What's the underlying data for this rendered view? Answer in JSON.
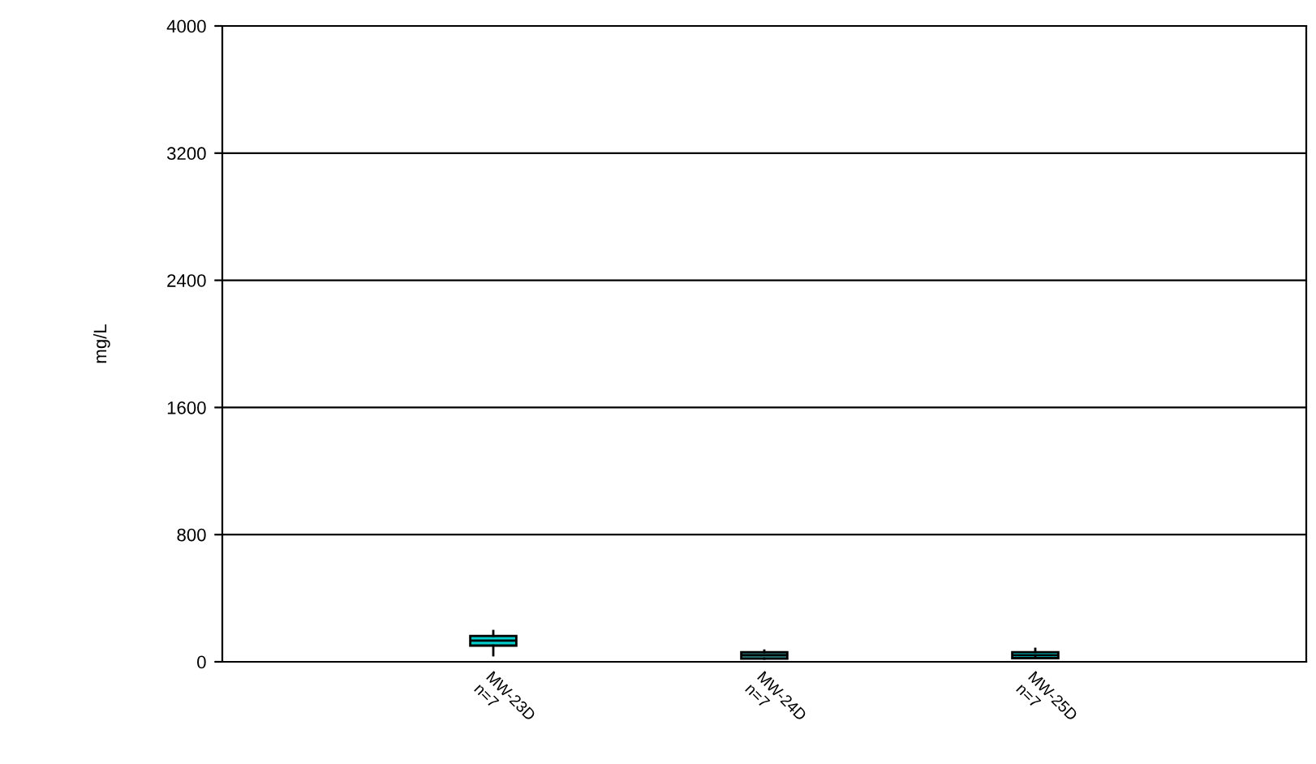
{
  "chart_data": {
    "type": "box",
    "ylabel": "mg/L",
    "categories": [
      "MW-23D\nn=7",
      "MW-24D\nn=7",
      "MW-25D\nn=7"
    ],
    "colors": [
      "#00cccc",
      "#2e8b8b",
      "#00cccc"
    ],
    "boxes": [
      {
        "low": 41,
        "q1": 102,
        "median": 133,
        "q3": 163,
        "high": 194
      },
      {
        "low": 20,
        "q1": 20,
        "median": 41,
        "q3": 61,
        "high": 71
      },
      {
        "low": 30,
        "q1": 23,
        "median": 41,
        "q3": 61,
        "high": 82
      }
    ],
    "ylim": [
      0,
      4000
    ],
    "yticks": [
      0,
      800,
      1600,
      2400,
      3200,
      4000
    ],
    "grid": "y",
    "legend": false
  }
}
